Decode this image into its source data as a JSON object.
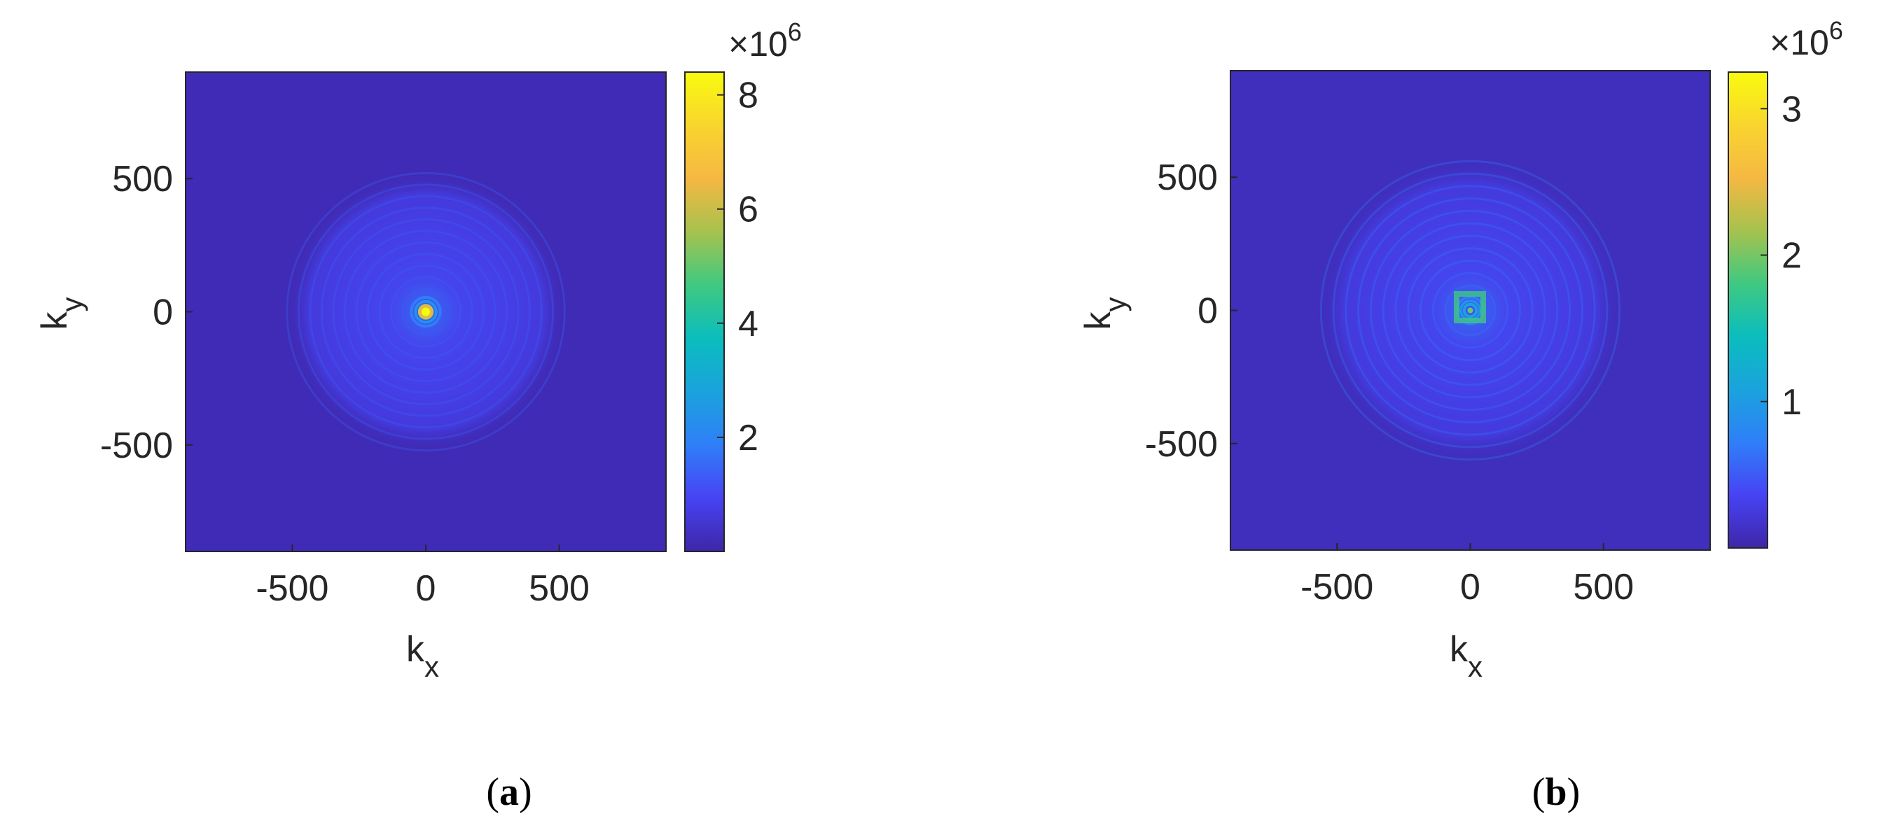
{
  "chart_data": [
    {
      "type": "heatmap",
      "panel_label": "a",
      "xlabel": "k",
      "xlabel_sub": "x",
      "ylabel": "k",
      "ylabel_sub": "y",
      "xlim": [
        -900,
        900
      ],
      "ylim": [
        -900,
        900
      ],
      "xticks": [
        -500,
        0,
        500
      ],
      "yticks": [
        500,
        0,
        -500
      ],
      "xtick_labels": [
        "-500",
        "0",
        "500"
      ],
      "ytick_labels": [
        "500",
        "0",
        "-500"
      ],
      "colorbar": {
        "min": 0,
        "max": 8400000,
        "ticks": [
          2000000,
          4000000,
          6000000,
          8000000
        ],
        "tick_labels": [
          "2",
          "4",
          "6",
          "8"
        ],
        "exponent_base": "×10",
        "exponent_power": "6"
      },
      "background_level": 0.02,
      "center_peak": 8400000,
      "halo_radius": 520,
      "inner_ring_radius": 60,
      "feature": "bright central spot with faint concentric rings",
      "colormap": "parula"
    },
    {
      "type": "heatmap",
      "panel_label": "b",
      "xlabel": "k",
      "xlabel_sub": "x",
      "ylabel": "k",
      "ylabel_sub": "y",
      "xlim": [
        -900,
        900
      ],
      "ylim": [
        -900,
        900
      ],
      "xticks": [
        -500,
        0,
        500
      ],
      "yticks": [
        500,
        0,
        -500
      ],
      "xtick_labels": [
        "-500",
        "0",
        "500"
      ],
      "ytick_labels": [
        "500",
        "0",
        "-500"
      ],
      "colorbar": {
        "min": 0,
        "max": 3250000,
        "ticks": [
          1000000,
          2000000,
          3000000
        ],
        "tick_labels": [
          "1",
          "2",
          "3"
        ],
        "exponent_base": "×10",
        "exponent_power": "6"
      },
      "background_level": 0.03,
      "center_peak": 3250000,
      "halo_radius": 560,
      "inner_ring_radius": 55,
      "feature": "central square-shaped ring with concentric rings",
      "colormap": "parula"
    }
  ],
  "colors": {
    "parula": [
      "#3E26A8",
      "#4743F4",
      "#2F7FF8",
      "#1AA3DD",
      "#0BBDBD",
      "#3FC981",
      "#A6C24E",
      "#F5B842",
      "#F9D52E",
      "#F9FB0E"
    ],
    "axis": "#262626",
    "caption": "#000000"
  }
}
